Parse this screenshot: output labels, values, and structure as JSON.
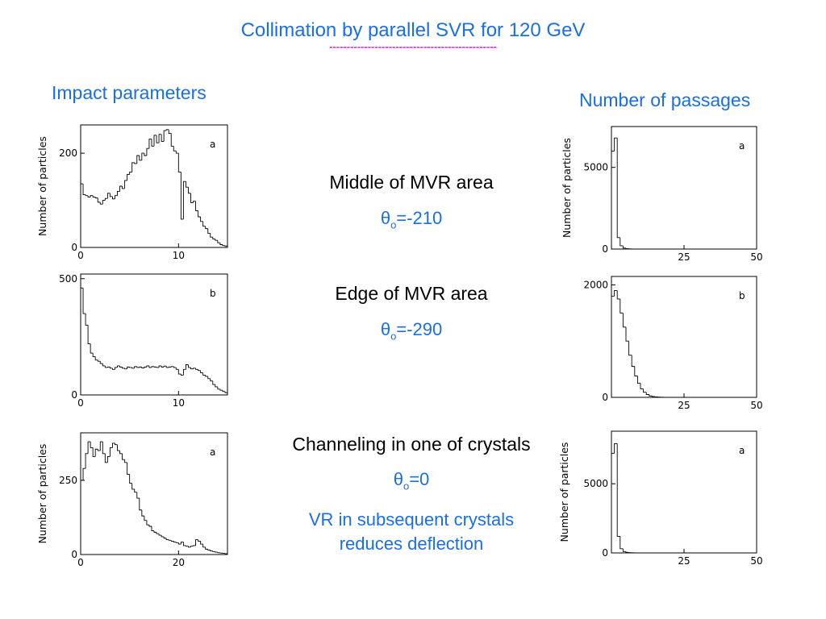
{
  "slide": {
    "title": "Collimation by parallel SVR for 120 GeV",
    "title_underline": "------------------------------------------------",
    "left_heading": "Impact parameters",
    "right_heading": "Number of passages",
    "rows": [
      {
        "label": "Middle of MVR area",
        "theta_sym": "θ",
        "theta_sub": "o",
        "theta_value": "=-210"
      },
      {
        "label": "Edge of MVR area",
        "theta_sym": "θ",
        "theta_sub": "o",
        "theta_value": "=-290"
      },
      {
        "label": "Channeling in one of crystals",
        "theta_sym": "θ",
        "theta_sub": "o",
        "theta_value": "=0",
        "note_line1": "VR in subsequent crystals",
        "note_line2": "reduces deflection"
      }
    ],
    "colors": {
      "accent": "#1a6ee6",
      "underline": "#e020e0",
      "text": "#000000"
    }
  },
  "chart_data": [
    {
      "type": "bar",
      "panel_tag": "a",
      "ylabel": "Number of particles",
      "xlim": [
        0,
        15
      ],
      "ylim": [
        0,
        260
      ],
      "xticks": [
        "0",
        "10"
      ],
      "yticks": [
        "0",
        "200"
      ],
      "x_start": 0,
      "bin_width": 0.25,
      "values": [
        135,
        112,
        110,
        107,
        110,
        107,
        105,
        96,
        92,
        100,
        104,
        115,
        108,
        103,
        110,
        119,
        130,
        125,
        142,
        155,
        160,
        180,
        178,
        195,
        185,
        200,
        195,
        210,
        230,
        215,
        238,
        222,
        240,
        225,
        248,
        250,
        242,
        215,
        205,
        200,
        160,
        60,
        140,
        128,
        115,
        95,
        98,
        78,
        65,
        55,
        45,
        40,
        30,
        22,
        18,
        15,
        10,
        6,
        4,
        3
      ]
    },
    {
      "type": "bar",
      "panel_tag": "b",
      "ylabel": "",
      "xlim": [
        0,
        15
      ],
      "ylim": [
        0,
        520
      ],
      "xticks": [
        "0",
        "10"
      ],
      "yticks": [
        "0",
        "500"
      ],
      "x_start": 0,
      "bin_width": 0.25,
      "values": [
        460,
        350,
        300,
        220,
        180,
        165,
        150,
        145,
        135,
        125,
        118,
        120,
        115,
        110,
        118,
        125,
        120,
        115,
        112,
        120,
        118,
        115,
        122,
        118,
        120,
        116,
        120,
        125,
        118,
        122,
        120,
        118,
        125,
        120,
        124,
        118,
        120,
        122,
        118,
        110,
        90,
        85,
        110,
        130,
        118,
        112,
        115,
        110,
        105,
        95,
        85,
        80,
        70,
        60,
        45,
        35,
        25,
        20,
        15,
        10
      ]
    },
    {
      "type": "bar",
      "panel_tag": "a",
      "ylabel": "Number of particles",
      "xlim": [
        0,
        30
      ],
      "ylim": [
        0,
        410
      ],
      "xticks": [
        "0",
        "20"
      ],
      "yticks": [
        "0",
        "250"
      ],
      "x_start": 0,
      "bin_width": 0.5,
      "values": [
        250,
        290,
        340,
        380,
        360,
        330,
        355,
        350,
        380,
        340,
        310,
        330,
        360,
        375,
        370,
        350,
        340,
        320,
        310,
        270,
        240,
        220,
        210,
        190,
        150,
        130,
        115,
        100,
        95,
        80,
        75,
        70,
        65,
        60,
        55,
        50,
        48,
        45,
        42,
        40,
        35,
        42,
        30,
        28,
        25,
        28,
        30,
        50,
        45,
        35,
        25,
        18,
        15,
        12,
        10,
        8,
        6,
        5,
        4,
        3
      ]
    },
    {
      "type": "bar",
      "panel_tag": "a",
      "ylabel": "Number of particles",
      "xlim": [
        0,
        50
      ],
      "ylim": [
        0,
        7500
      ],
      "xticks": [
        "25",
        "50"
      ],
      "yticks": [
        "0",
        "5000"
      ],
      "x_start": 0,
      "bin_width": 1,
      "values": [
        6000,
        6800,
        700,
        200,
        60,
        20,
        8,
        4,
        2,
        1,
        0,
        0,
        0,
        0,
        0,
        0,
        0,
        0,
        0,
        0,
        0,
        0,
        0,
        0,
        0,
        0,
        0,
        0,
        0,
        0,
        0,
        0,
        0,
        0,
        0,
        0,
        0,
        0,
        0,
        0,
        0,
        0,
        0,
        0,
        0,
        0,
        0,
        0,
        0,
        0
      ]
    },
    {
      "type": "bar",
      "panel_tag": "b",
      "ylabel": "",
      "xlim": [
        0,
        50
      ],
      "ylim": [
        0,
        2150
      ],
      "xticks": [
        "25",
        "50"
      ],
      "yticks": [
        "0",
        "2000"
      ],
      "x_start": 0,
      "bin_width": 1,
      "values": [
        1800,
        1900,
        1750,
        1500,
        1250,
        1000,
        750,
        550,
        380,
        250,
        150,
        90,
        50,
        25,
        15,
        8,
        4,
        2,
        1,
        0,
        0,
        0,
        0,
        0,
        0,
        0,
        0,
        0,
        0,
        0,
        0,
        0,
        0,
        0,
        0,
        0,
        0,
        0,
        0,
        0,
        0,
        0,
        0,
        0,
        0,
        0,
        0,
        0,
        0,
        0
      ]
    },
    {
      "type": "bar",
      "panel_tag": "a",
      "ylabel": "Number of particles",
      "xlim": [
        0,
        50
      ],
      "ylim": [
        0,
        8800
      ],
      "xticks": [
        "25",
        "50"
      ],
      "yticks": [
        "0",
        "5000"
      ],
      "x_start": 0,
      "bin_width": 1,
      "values": [
        7200,
        7900,
        1200,
        300,
        100,
        40,
        20,
        10,
        5,
        2,
        1,
        0,
        0,
        0,
        0,
        0,
        0,
        0,
        0,
        0,
        0,
        0,
        0,
        0,
        0,
        0,
        0,
        0,
        0,
        0,
        0,
        0,
        0,
        0,
        0,
        0,
        0,
        0,
        0,
        0,
        0,
        0,
        0,
        0,
        0,
        0,
        0,
        0,
        0,
        0
      ]
    }
  ]
}
